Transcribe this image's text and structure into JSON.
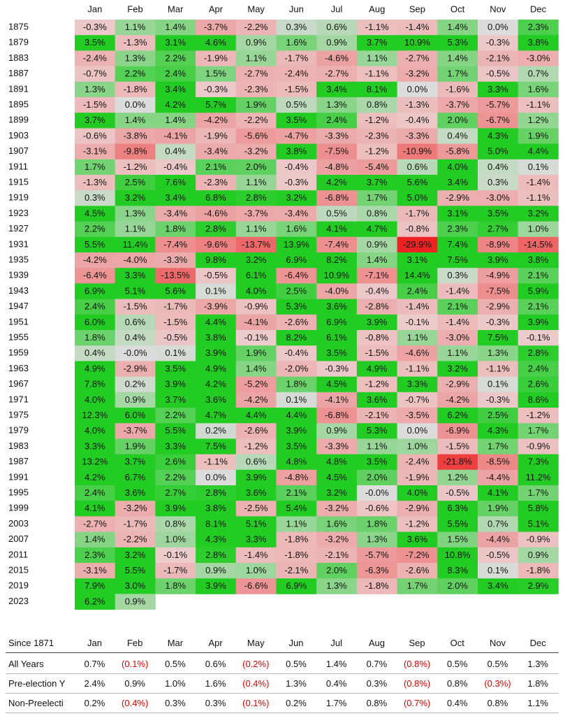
{
  "chart_data": {
    "type": "heatmap",
    "columns": [
      "Jan",
      "Feb",
      "Mar",
      "Apr",
      "May",
      "Jun",
      "Jul",
      "Aug",
      "Sep",
      "Oct",
      "Nov",
      "Dec"
    ],
    "rows": [
      {
        "year": "1875",
        "values": [
          "-0.3%",
          "1.1%",
          "1.4%",
          "-3.7%",
          "-2.2%",
          "0.3%",
          "0.6%",
          "-1.1%",
          "-1.4%",
          "1.4%",
          "0.0%",
          "2.3%"
        ]
      },
      {
        "year": "1879",
        "values": [
          "3.5%",
          "-1.3%",
          "3.1%",
          "4.6%",
          "0.9%",
          "1.6%",
          "0.9%",
          "3.7%",
          "10.9%",
          "5.3%",
          "-0.3%",
          "3.8%"
        ]
      },
      {
        "year": "1883",
        "values": [
          "-2.4%",
          "1.3%",
          "2.2%",
          "-1.9%",
          "1.1%",
          "-1.7%",
          "-4.6%",
          "1.1%",
          "-2.7%",
          "1.4%",
          "-2.1%",
          "-3.0%"
        ]
      },
      {
        "year": "1887",
        "values": [
          "-0.7%",
          "2.2%",
          "2.4%",
          "1.5%",
          "-2.7%",
          "-2.4%",
          "-2.7%",
          "-1.1%",
          "-3.2%",
          "1.7%",
          "-0.5%",
          "0.7%"
        ]
      },
      {
        "year": "1891",
        "values": [
          "1.3%",
          "-1.8%",
          "3.4%",
          "-0.3%",
          "-2.3%",
          "-1.5%",
          "3.4%",
          "8.1%",
          "0.0%",
          "-1.6%",
          "3.3%",
          "1.6%"
        ]
      },
      {
        "year": "1895",
        "values": [
          "-1.5%",
          "0.0%",
          "4.2%",
          "5.7%",
          "1.9%",
          "0.5%",
          "1.3%",
          "0.8%",
          "-1.3%",
          "-3.7%",
          "-5.7%",
          "-1.1%"
        ]
      },
      {
        "year": "1899",
        "values": [
          "3.7%",
          "1.4%",
          "1.4%",
          "-4.2%",
          "-2.2%",
          "3.5%",
          "2.4%",
          "-1.2%",
          "-0.4%",
          "2.0%",
          "-6.7%",
          "1.2%"
        ]
      },
      {
        "year": "1903",
        "values": [
          "-0.6%",
          "-3.8%",
          "-4.1%",
          "-1.9%",
          "-5.6%",
          "-4.7%",
          "-3.3%",
          "-2.3%",
          "-3.3%",
          "0.4%",
          "4.3%",
          "1.9%"
        ]
      },
      {
        "year": "1907",
        "values": [
          "-3.1%",
          "-9.8%",
          "0.4%",
          "-3.4%",
          "-3.2%",
          "3.8%",
          "-7.5%",
          "-1.2%",
          "-10.9%",
          "-5.8%",
          "5.0%",
          "4.4%"
        ]
      },
      {
        "year": "1911",
        "values": [
          "1.7%",
          "-1.2%",
          "-0.4%",
          "2.1%",
          "2.0%",
          "-0.4%",
          "-4.8%",
          "-5.4%",
          "0.6%",
          "4.0%",
          "0.4%",
          "0.1%"
        ]
      },
      {
        "year": "1915",
        "values": [
          "-1.3%",
          "2.5%",
          "7.6%",
          "-2.3%",
          "1.1%",
          "-0.3%",
          "4.2%",
          "3.7%",
          "5.6%",
          "3.4%",
          "0.3%",
          "-1.4%"
        ]
      },
      {
        "year": "1919",
        "values": [
          "0.3%",
          "3.2%",
          "3.4%",
          "6.8%",
          "2.8%",
          "3.2%",
          "-6.8%",
          "1.7%",
          "5.0%",
          "-2.9%",
          "-3.0%",
          "-1.1%"
        ]
      },
      {
        "year": "1923",
        "values": [
          "4.5%",
          "1.3%",
          "-3.4%",
          "-4.6%",
          "-3.7%",
          "-3.4%",
          "0.5%",
          "0.8%",
          "-1.7%",
          "3.1%",
          "3.5%",
          "3.2%"
        ]
      },
      {
        "year": "1927",
        "values": [
          "2.2%",
          "1.1%",
          "1.8%",
          "2.8%",
          "1.1%",
          "1.6%",
          "4.1%",
          "4.7%",
          "-0.8%",
          "2.3%",
          "2.7%",
          "1.0%"
        ]
      },
      {
        "year": "1931",
        "values": [
          "5.5%",
          "11.4%",
          "-7.4%",
          "-9.6%",
          "-13.7%",
          "13.9%",
          "-7.4%",
          "0.9%",
          "-29.9%",
          "7.4%",
          "-8.9%",
          "-14.5%"
        ]
      },
      {
        "year": "1935",
        "values": [
          "-4.2%",
          "-4.0%",
          "-3.3%",
          "9.8%",
          "3.2%",
          "6.9%",
          "8.2%",
          "1.4%",
          "3.1%",
          "7.5%",
          "3.9%",
          "3.8%"
        ]
      },
      {
        "year": "1939",
        "values": [
          "-6.4%",
          "3.3%",
          "-13.5%",
          "-0.5%",
          "6.1%",
          "-6.4%",
          "10.9%",
          "-7.1%",
          "14.4%",
          "0.3%",
          "-4.9%",
          "2.1%"
        ]
      },
      {
        "year": "1943",
        "values": [
          "6.9%",
          "5.1%",
          "5.6%",
          "0.1%",
          "4.0%",
          "2.5%",
          "-4.0%",
          "-0.4%",
          "2.4%",
          "-1.4%",
          "-7.5%",
          "5.9%"
        ]
      },
      {
        "year": "1947",
        "values": [
          "2.4%",
          "-1.5%",
          "-1.7%",
          "-3.9%",
          "-0.9%",
          "5.3%",
          "3.6%",
          "-2.8%",
          "-1.4%",
          "2.1%",
          "-2.9%",
          "2.1%"
        ]
      },
      {
        "year": "1951",
        "values": [
          "6.0%",
          "0.6%",
          "-1.5%",
          "4.4%",
          "-4.1%",
          "-2.6%",
          "6.9%",
          "3.9%",
          "-0.1%",
          "-1.4%",
          "-0.3%",
          "3.9%"
        ]
      },
      {
        "year": "1955",
        "values": [
          "1.8%",
          "0.4%",
          "-0.5%",
          "3.8%",
          "-0.1%",
          "8.2%",
          "6.1%",
          "-0.8%",
          "1.1%",
          "-3.0%",
          "7.5%",
          "-0.1%"
        ]
      },
      {
        "year": "1959",
        "values": [
          "0.4%",
          "-0.0%",
          "0.1%",
          "3.9%",
          "1.9%",
          "-0.4%",
          "3.5%",
          "-1.5%",
          "-4.6%",
          "1.1%",
          "1.3%",
          "2.8%"
        ]
      },
      {
        "year": "1963",
        "values": [
          "4.9%",
          "-2.9%",
          "3.5%",
          "4.9%",
          "1.4%",
          "-2.0%",
          "-0.3%",
          "4.9%",
          "-1.1%",
          "3.2%",
          "-1.1%",
          "2.4%"
        ]
      },
      {
        "year": "1967",
        "values": [
          "7.8%",
          "0.2%",
          "3.9%",
          "4.2%",
          "-5.2%",
          "1.8%",
          "4.5%",
          "-1.2%",
          "3.3%",
          "-2.9%",
          "0.1%",
          "2.6%"
        ]
      },
      {
        "year": "1971",
        "values": [
          "4.0%",
          "0.9%",
          "3.7%",
          "3.6%",
          "-4.2%",
          "0.1%",
          "-4.1%",
          "3.6%",
          "-0.7%",
          "-4.2%",
          "-0.3%",
          "8.6%"
        ]
      },
      {
        "year": "1975",
        "values": [
          "12.3%",
          "6.0%",
          "2.2%",
          "4.7%",
          "4.4%",
          "4.4%",
          "-6.8%",
          "-2.1%",
          "-3.5%",
          "6.2%",
          "2.5%",
          "-1.2%"
        ]
      },
      {
        "year": "1979",
        "values": [
          "4.0%",
          "-3.7%",
          "5.5%",
          "0.2%",
          "-2.6%",
          "3.9%",
          "0.9%",
          "5.3%",
          "0.0%",
          "-6.9%",
          "4.3%",
          "1.7%"
        ]
      },
      {
        "year": "1983",
        "values": [
          "3.3%",
          "1.9%",
          "3.3%",
          "7.5%",
          "-1.2%",
          "3.5%",
          "-3.3%",
          "1.1%",
          "1.0%",
          "-1.5%",
          "1.7%",
          "-0.9%"
        ]
      },
      {
        "year": "1987",
        "values": [
          "13.2%",
          "3.7%",
          "2.6%",
          "-1.1%",
          "0.6%",
          "4.8%",
          "4.8%",
          "3.5%",
          "-2.4%",
          "-21.8%",
          "-8.5%",
          "7.3%"
        ]
      },
      {
        "year": "1991",
        "values": [
          "4.2%",
          "6.7%",
          "2.2%",
          "0.0%",
          "3.9%",
          "-4.8%",
          "4.5%",
          "2.0%",
          "-1.9%",
          "1.2%",
          "-4.4%",
          "11.2%"
        ]
      },
      {
        "year": "1995",
        "values": [
          "2.4%",
          "3.6%",
          "2.7%",
          "2.8%",
          "3.6%",
          "2.1%",
          "3.2%",
          "-0.0%",
          "4.0%",
          "-0.5%",
          "4.1%",
          "1.7%"
        ]
      },
      {
        "year": "1999",
        "values": [
          "4.1%",
          "-3.2%",
          "3.9%",
          "3.8%",
          "-2.5%",
          "5.4%",
          "-3.2%",
          "-0.6%",
          "-2.9%",
          "6.3%",
          "1.9%",
          "5.8%"
        ]
      },
      {
        "year": "2003",
        "values": [
          "-2.7%",
          "-1.7%",
          "0.8%",
          "8.1%",
          "5.1%",
          "1.1%",
          "1.6%",
          "1.8%",
          "-1.2%",
          "5.5%",
          "0.7%",
          "5.1%"
        ]
      },
      {
        "year": "2007",
        "values": [
          "1.4%",
          "-2.2%",
          "1.0%",
          "4.3%",
          "3.3%",
          "-1.8%",
          "-3.2%",
          "1.3%",
          "3.6%",
          "1.5%",
          "-4.4%",
          "-0.9%"
        ]
      },
      {
        "year": "2011",
        "values": [
          "2.3%",
          "3.2%",
          "-0.1%",
          "2.8%",
          "-1.4%",
          "-1.8%",
          "-2.1%",
          "-5.7%",
          "-7.2%",
          "10.8%",
          "-0.5%",
          "0.9%"
        ]
      },
      {
        "year": "2015",
        "values": [
          "-3.1%",
          "5.5%",
          "-1.7%",
          "0.9%",
          "1.0%",
          "-2.1%",
          "2.0%",
          "-6.3%",
          "-2.6%",
          "8.3%",
          "0.1%",
          "-1.8%"
        ]
      },
      {
        "year": "2019",
        "values": [
          "7.9%",
          "3.0%",
          "1.8%",
          "3.9%",
          "-6.6%",
          "6.9%",
          "1.3%",
          "-1.8%",
          "1.7%",
          "2.0%",
          "3.4%",
          "2.9%"
        ]
      },
      {
        "year": "2023",
        "values": [
          "6.2%",
          "0.9%"
        ]
      }
    ],
    "color_scale": {
      "positive": "#22cc22",
      "negative": "#ee2222",
      "neutral": "#dcdcdc"
    }
  },
  "summary": {
    "header": "Since 1871",
    "rows": [
      {
        "label": "All Years",
        "values": [
          "0.7%",
          "(0.1%)",
          "0.5%",
          "0.6%",
          "(0.2%)",
          "0.5%",
          "1.4%",
          "0.7%",
          "(0.8%)",
          "0.5%",
          "0.5%",
          "1.3%"
        ]
      },
      {
        "label": "Pre-election Y",
        "values": [
          "2.4%",
          "0.9%",
          "1.0%",
          "1.6%",
          "(0.4%)",
          "1.3%",
          "0.4%",
          "0.3%",
          "(0.8%)",
          "0.8%",
          "(0.3%)",
          "1.8%"
        ]
      },
      {
        "label": "Non-Preelecti",
        "values": [
          "0.2%",
          "(0.4%)",
          "0.3%",
          "0.3%",
          "(0.1%)",
          "0.2%",
          "1.7%",
          "0.8%",
          "(0.7%)",
          "0.4%",
          "0.8%",
          "1.1%"
        ]
      }
    ]
  }
}
